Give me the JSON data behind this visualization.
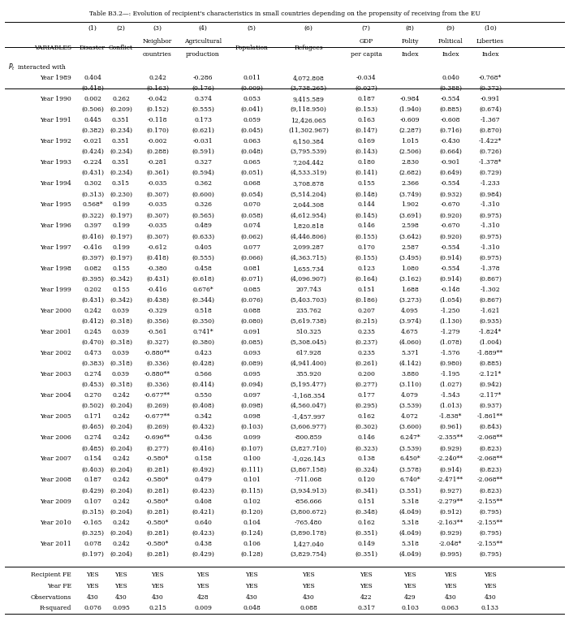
{
  "title": "Table B3.2—: Evolution of recipient's characteristics in small countries depending on the propensity of receiving from the EU",
  "col_headers": [
    "(1)",
    "(2)",
    "(3)",
    "(4)",
    "(5)",
    "(6)",
    "(7)",
    "(8)",
    "(9)",
    "(10)"
  ],
  "col_subheaders": [
    "Disaster",
    "Conflict",
    "Neighbor\ncountries",
    "Agricultural\nproduction",
    "Population",
    "Refugees",
    "GDP\nper capita",
    "Polity\nIndex",
    "Political\nIndex",
    "Liberties\nIndex"
  ],
  "pi_label_italic": "P",
  "pi_label_rest": "t interacted with",
  "years": [
    "Year 1989",
    "Year 1990",
    "Year 1991",
    "Year 1992",
    "Year 1993",
    "Year 1994",
    "Year 1995",
    "Year 1996",
    "Year 1997",
    "Year 1998",
    "Year 1999",
    "Year 2000",
    "Year 2001",
    "Year 2002",
    "Year 2003",
    "Year 2004",
    "Year 2005",
    "Year 2006",
    "Year 2007",
    "Year 2008",
    "Year 2009",
    "Year 2010",
    "Year 2011"
  ],
  "data": [
    [
      "0.404",
      "",
      "0.242",
      "-0.286",
      "0.011",
      "4,072.808",
      "-0.034",
      "",
      "0.040",
      "-0.768*"
    ],
    [
      "(0.418)",
      "",
      "(0.163)",
      "(0.176)",
      "(0.009)",
      "(3,738.265)",
      "(0.027)",
      "",
      "(0.388)",
      "(0.372)"
    ],
    [
      "0.002",
      "0.262",
      "-0.042",
      "0.374",
      "0.053",
      "9,415.589",
      "0.187",
      "-0.984",
      "-0.554",
      "-0.991"
    ],
    [
      "(0.506)",
      "(0.209)",
      "(0.152)",
      "(0.555)",
      "(0.041)",
      "(9,118.950)",
      "(0.153)",
      "(1.940)",
      "(0.885)",
      "(0.674)"
    ],
    [
      "0.445",
      "0.351",
      "-0.118",
      "0.173",
      "0.059",
      "12,426.065",
      "0.163",
      "-0.609",
      "-0.608",
      "-1.367"
    ],
    [
      "(0.382)",
      "(0.234)",
      "(0.170)",
      "(0.621)",
      "(0.045)",
      "(11,302.967)",
      "(0.147)",
      "(2.287)",
      "(0.716)",
      "(0.870)"
    ],
    [
      "-0.021",
      "0.351",
      "-0.002",
      "-0.031",
      "0.063",
      "6,150.384",
      "0.169",
      "1.015",
      "-0.430",
      "-1.422*"
    ],
    [
      "(0.424)",
      "(0.234)",
      "(0.288)",
      "(0.591)",
      "(0.048)",
      "(3,795.539)",
      "(0.143)",
      "(2.506)",
      "(0.664)",
      "(0.726)"
    ],
    [
      "-0.224",
      "0.351",
      "-0.281",
      "0.327",
      "0.065",
      "7,204.442",
      "0.180",
      "2.830",
      "-0.901",
      "-1.378*"
    ],
    [
      "(0.431)",
      "(0.234)",
      "(0.361)",
      "(0.594)",
      "(0.051)",
      "(4,533.319)",
      "(0.141)",
      "(2.682)",
      "(0.649)",
      "(0.729)"
    ],
    [
      "0.302",
      "0.315",
      "-0.035",
      "0.362",
      "0.068",
      "3,708.878",
      "0.155",
      "2.366",
      "-0.554",
      "-1.233"
    ],
    [
      "(0.313)",
      "(0.230)",
      "(0.307)",
      "(0.600)",
      "(0.054)",
      "(5,514.204)",
      "(0.148)",
      "(3.749)",
      "(0.932)",
      "(0.984)"
    ],
    [
      "0.568*",
      "0.199",
      "-0.035",
      "0.326",
      "0.070",
      "2,044.308",
      "0.144",
      "1.902",
      "-0.670",
      "-1.310"
    ],
    [
      "(0.322)",
      "(0.197)",
      "(0.307)",
      "(0.565)",
      "(0.058)",
      "(4,612.954)",
      "(0.145)",
      "(3.691)",
      "(0.920)",
      "(0.975)"
    ],
    [
      "0.397",
      "0.199",
      "-0.035",
      "0.489",
      "0.074",
      "1,820.818",
      "0.146",
      "2.598",
      "-0.670",
      "-1.310"
    ],
    [
      "(0.416)",
      "(0.197)",
      "(0.307)",
      "(0.633)",
      "(0.062)",
      "(4,446.806)",
      "(0.155)",
      "(3.642)",
      "(0.920)",
      "(0.975)"
    ],
    [
      "-0.416",
      "0.199",
      "-0.612",
      "0.405",
      "0.077",
      "2,099.287",
      "0.170",
      "2.587",
      "-0.554",
      "-1.310"
    ],
    [
      "(0.397)",
      "(0.197)",
      "(0.418)",
      "(0.555)",
      "(0.066)",
      "(4,363.715)",
      "(0.155)",
      "(3.495)",
      "(0.914)",
      "(0.975)"
    ],
    [
      "0.082",
      "0.155",
      "-0.380",
      "0.458",
      "0.081",
      "1,655.734",
      "0.123",
      "1.080",
      "-0.554",
      "-1.378"
    ],
    [
      "(0.395)",
      "(0.342)",
      "(0.431)",
      "(0.618)",
      "(0.071)",
      "(4,096.907)",
      "(0.164)",
      "(3.162)",
      "(0.914)",
      "(0.867)"
    ],
    [
      "0.202",
      "0.155",
      "-0.416",
      "0.676*",
      "0.085",
      "207.743",
      "0.151",
      "1.688",
      "-0.148",
      "-1.302"
    ],
    [
      "(0.431)",
      "(0.342)",
      "(0.438)",
      "(0.344)",
      "(0.076)",
      "(5,403.703)",
      "(0.186)",
      "(3.273)",
      "(1.054)",
      "(0.867)"
    ],
    [
      "0.242",
      "0.039",
      "-0.329",
      "0.518",
      "0.088",
      "235.762",
      "0.207",
      "4.095",
      "-1.250",
      "-1.621"
    ],
    [
      "(0.412)",
      "(0.318)",
      "(0.356)",
      "(0.350)",
      "(0.080)",
      "(5,619.738)",
      "(0.215)",
      "(3.974)",
      "(1.130)",
      "(0.935)"
    ],
    [
      "0.245",
      "0.039",
      "-0.561",
      "0.741*",
      "0.091",
      "510.325",
      "0.235",
      "4.675",
      "-1.279",
      "-1.824*"
    ],
    [
      "(0.470)",
      "(0.318)",
      "(0.327)",
      "(0.380)",
      "(0.085)",
      "(5,308.045)",
      "(0.237)",
      "(4.060)",
      "(1.078)",
      "(1.004)"
    ],
    [
      "0.473",
      "0.039",
      "-0.880**",
      "0.423",
      "0.093",
      "617.928",
      "0.235",
      "5.371",
      "-1.576",
      "-1.889**"
    ],
    [
      "(0.383)",
      "(0.318)",
      "(0.336)",
      "(0.428)",
      "(0.089)",
      "(4,941.400)",
      "(0.261)",
      "(4.142)",
      "(0.980)",
      "(0.885)"
    ],
    [
      "0.274",
      "0.039",
      "-0.880**",
      "0.566",
      "0.095",
      "355.920",
      "0.200",
      "3.880",
      "-1.195",
      "-2.121*"
    ],
    [
      "(0.453)",
      "(0.318)",
      "(0.336)",
      "(0.414)",
      "(0.094)",
      "(5,195.477)",
      "(0.277)",
      "(3.110)",
      "(1.027)",
      "(0.942)"
    ],
    [
      "0.270",
      "0.242",
      "-0.677**",
      "0.550",
      "0.097",
      "-1,168.354",
      "0.177",
      "4.079",
      "-1.543",
      "-2.117*"
    ],
    [
      "(0.502)",
      "(0.204)",
      "(0.269)",
      "(0.408)",
      "(0.098)",
      "(4,560.047)",
      "(0.295)",
      "(3.539)",
      "(1.013)",
      "(0.937)"
    ],
    [
      "0.171",
      "0.242",
      "-0.677**",
      "0.342",
      "0.098",
      "-1,457.997",
      "0.162",
      "4.072",
      "-1.838*",
      "-1.861**"
    ],
    [
      "(0.465)",
      "(0.204)",
      "(0.269)",
      "(0.432)",
      "(0.103)",
      "(3,606.977)",
      "(0.302)",
      "(3.600)",
      "(0.961)",
      "(0.843)"
    ],
    [
      "0.274",
      "0.242",
      "-0.696**",
      "0.436",
      "0.099",
      "-800.859",
      "0.146",
      "6.247*",
      "-2.355**",
      "-2.068**"
    ],
    [
      "(0.485)",
      "(0.204)",
      "(0.277)",
      "(0.416)",
      "(0.107)",
      "(3,827.710)",
      "(0.323)",
      "(3.539)",
      "(0.929)",
      "(0.823)"
    ],
    [
      "0.154",
      "0.242",
      "-0.580*",
      "0.158",
      "0.100",
      "-1,026.143",
      "0.138",
      "6.450*",
      "-2.240**",
      "-2.068**"
    ],
    [
      "(0.403)",
      "(0.204)",
      "(0.281)",
      "(0.492)",
      "(0.111)",
      "(3,867.158)",
      "(0.324)",
      "(3.578)",
      "(0.914)",
      "(0.823)"
    ],
    [
      "0.187",
      "0.242",
      "-0.580*",
      "0.479",
      "0.101",
      "-711.068",
      "0.120",
      "6.740*",
      "-2.471**",
      "-2.068**"
    ],
    [
      "(0.429)",
      "(0.204)",
      "(0.281)",
      "(0.423)",
      "(0.115)",
      "(3,934.913)",
      "(0.341)",
      "(3.551)",
      "(0.927)",
      "(0.823)"
    ],
    [
      "0.107",
      "0.242",
      "-0.580*",
      "0.408",
      "0.102",
      "-856.666",
      "0.151",
      "5.318",
      "-2.279**",
      "-2.155**"
    ],
    [
      "(0.315)",
      "(0.204)",
      "(0.281)",
      "(0.421)",
      "(0.120)",
      "(3,800.672)",
      "(0.348)",
      "(4.049)",
      "(0.912)",
      "(0.795)"
    ],
    [
      "-0.165",
      "0.242",
      "-0.580*",
      "0.640",
      "0.104",
      "-765.480",
      "0.162",
      "5.318",
      "-2.163**",
      "-2.155**"
    ],
    [
      "(0.325)",
      "(0.204)",
      "(0.281)",
      "(0.423)",
      "(0.124)",
      "(3,890.178)",
      "(0.351)",
      "(4.049)",
      "(0.929)",
      "(0.795)"
    ],
    [
      "0.078",
      "0.242",
      "-0.580*",
      "0.438",
      "0.106",
      "1,427.040",
      "0.149",
      "5.318",
      "-2.048*",
      "-2.155**"
    ],
    [
      "(0.197)",
      "(0.204)",
      "(0.281)",
      "(0.429)",
      "(0.128)",
      "(3,829.754)",
      "(0.351)",
      "(4.049)",
      "(0.995)",
      "(0.795)"
    ]
  ],
  "footer_rows": [
    [
      "Recipient FE",
      "YES",
      "YES",
      "YES",
      "YES",
      "YES",
      "YES",
      "YES",
      "YES",
      "YES",
      "YES"
    ],
    [
      "Year FE",
      "YES",
      "YES",
      "YES",
      "YES",
      "YES",
      "YES",
      "YES",
      "YES",
      "YES",
      "YES"
    ],
    [
      "Observations",
      "430",
      "430",
      "430",
      "428",
      "430",
      "430",
      "422",
      "429",
      "430",
      "430"
    ],
    [
      "R-squared",
      "0.076",
      "0.095",
      "0.215",
      "0.009",
      "0.048",
      "0.088",
      "0.317",
      "0.103",
      "0.063",
      "0.133"
    ]
  ],
  "font_size": 5.5,
  "title_font_size": 5.5
}
